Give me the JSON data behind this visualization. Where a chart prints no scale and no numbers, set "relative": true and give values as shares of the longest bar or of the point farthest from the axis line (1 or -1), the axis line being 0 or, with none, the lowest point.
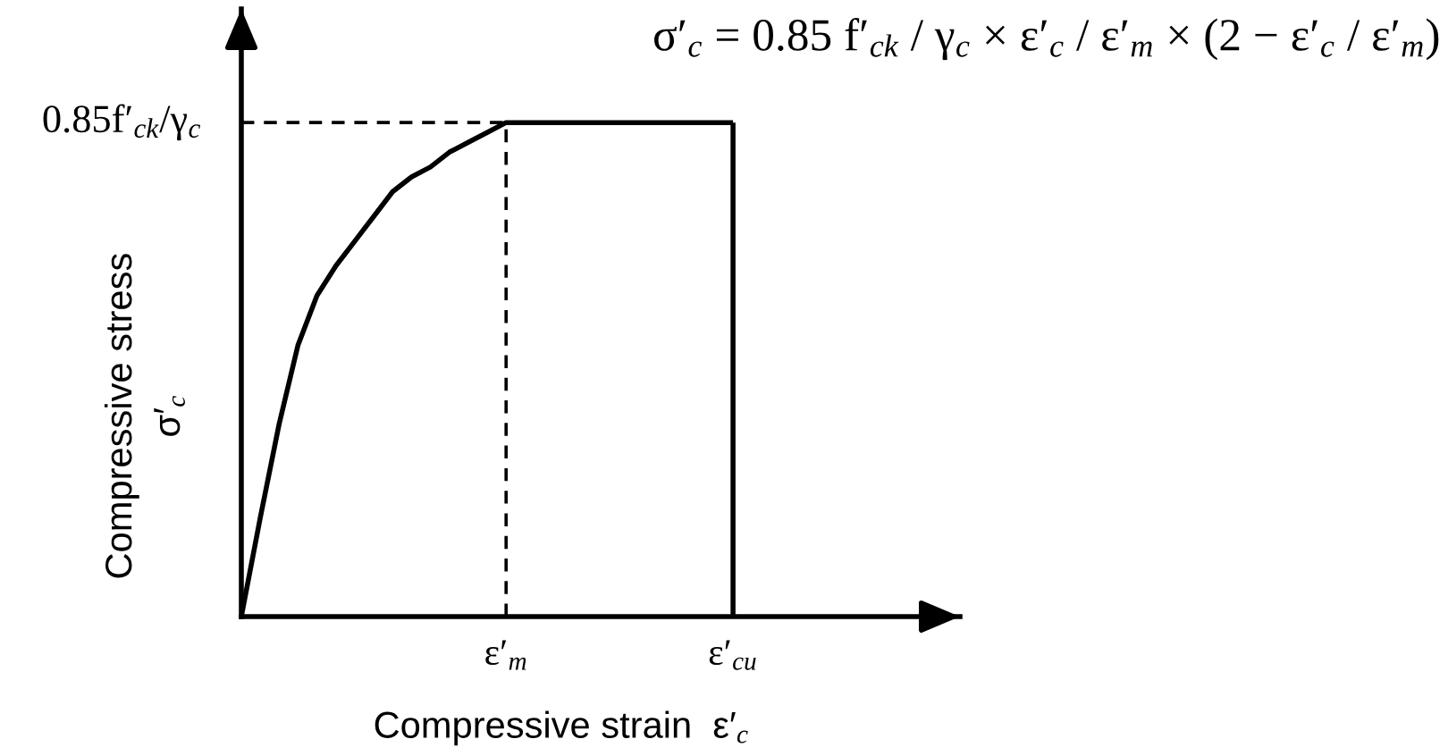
{
  "chart_data": {
    "type": "line",
    "relative": true,
    "annotations": [
      "σ′$_{c}$ = 0.85 f′$_{ck}$ / γ$_{c}$ × ε′$_{c}$ / ε′$_{m}$ × (2 − ε′$_{c}$ / ε′$_{m}$)"
    ],
    "xlabel": "Compressive strain  ε′$_{c}$",
    "ylabel": "Compressive stress\nσ′$_{c}$",
    "categories": [
      null,
      null,
      null,
      null,
      null,
      null,
      null,
      null,
      null,
      null,
      null,
      null,
      null,
      null,
      "ε′$_{m}$",
      null,
      null,
      null,
      null,
      null,
      null,
      null,
      null,
      null,
      null,
      null,
      "ε′$_{cu}$",
      null,
      null,
      null,
      null,
      null,
      null,
      null,
      null,
      null,
      null,
      null,
      null
    ],
    "series": [
      {
        "color": "#000000",
        "line_style": "solid",
        "values": [
          0,
          0.2,
          0.39,
          0.55,
          0.65,
          0.71,
          0.76,
          0.81,
          0.86,
          0.89,
          0.91,
          0.94,
          0.96,
          0.98,
          1,
          1,
          1,
          1,
          1,
          1,
          1,
          1,
          1,
          1,
          1,
          1,
          1,
          null,
          null,
          null,
          null,
          null,
          null,
          null,
          null,
          null,
          null,
          null,
          null
        ]
      }
    ],
    "ref_lines": [
      {
        "axis": "y",
        "value": 1,
        "label": "0.85f′$_{ck}$/γ$_{c}$",
        "line_style": "dashed",
        "color": "#000000"
      },
      {
        "axis": "x",
        "value": "ε′$_{m}$",
        "line_style": "dashed",
        "color": "#000000"
      },
      {
        "axis": "x",
        "value": "ε′$_{cu}$",
        "line_style": "solid",
        "color": "#000000"
      }
    ]
  }
}
